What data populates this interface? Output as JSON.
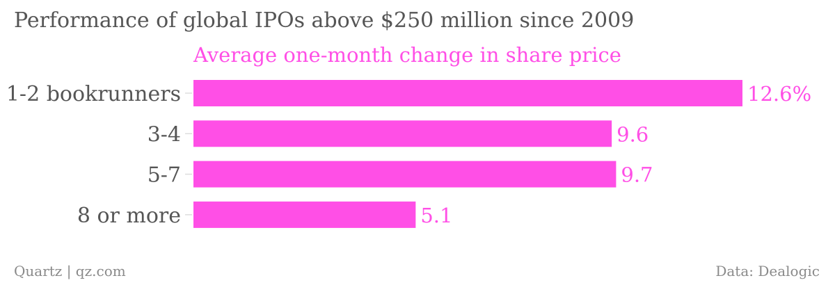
{
  "header": {
    "title": "Performance of global IPOs above $250 million since 2009"
  },
  "footer": {
    "left": "Quartz | qz.com",
    "right": "Data: Dealogic"
  },
  "colors": {
    "bar": "#ff4fe6",
    "category_text": "#555555",
    "tick": "#dddddd"
  },
  "chart_data": {
    "type": "bar",
    "orientation": "horizontal",
    "title": "Performance of global IPOs above $250 million since 2009",
    "categories": [
      "1-2 bookrunners",
      "3-4",
      "5-7",
      "8 or more"
    ],
    "series": [
      {
        "name": "Average one-month change in share price",
        "values": [
          12.6,
          9.6,
          9.7,
          5.1
        ]
      }
    ],
    "value_labels": [
      "12.6%",
      "9.6",
      "9.7",
      "5.1"
    ],
    "xlim": [
      0,
      12.6
    ],
    "grid": false,
    "legend": "top"
  }
}
